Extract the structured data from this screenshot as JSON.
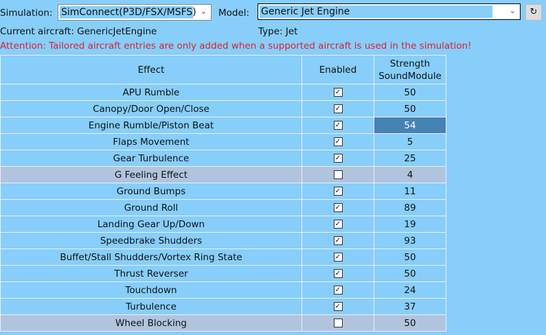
{
  "header": {
    "simulation_label": "Simulation:",
    "simulation_value": "SimConnect(P3D/FSX/MSFS)",
    "model_label": "Model:",
    "model_value": "Generic Jet Engine",
    "refresh_icon": "refresh-icon"
  },
  "info": {
    "current_aircraft": "Current aircraft: GenericJetEngine",
    "type": "Type: Jet",
    "attention": "Attention: Tailored aircraft entries are only added when a supported aircraft is used in the simulation!"
  },
  "colors": {
    "background": "#87cefa",
    "disabled_row": "#b0c4de",
    "selected_cell": "#4682b4",
    "attention": "#e0202a"
  },
  "table": {
    "headers": [
      "Effect",
      "Enabled",
      "Strength\nSoundModule"
    ],
    "rows": [
      {
        "effect": "APU Rumble",
        "enabled": true,
        "strength": "50"
      },
      {
        "effect": "Canopy/Door Open/Close",
        "enabled": true,
        "strength": "50"
      },
      {
        "effect": "Engine Rumble/Piston Beat",
        "enabled": true,
        "strength": "54",
        "selected": true
      },
      {
        "effect": "Flaps Movement",
        "enabled": true,
        "strength": "5"
      },
      {
        "effect": "Gear Turbulence",
        "enabled": true,
        "strength": "25"
      },
      {
        "effect": "G Feeling Effect",
        "enabled": false,
        "strength": "4"
      },
      {
        "effect": "Ground Bumps",
        "enabled": true,
        "strength": "11"
      },
      {
        "effect": "Ground Roll",
        "enabled": true,
        "strength": "89"
      },
      {
        "effect": "Landing Gear Up/Down",
        "enabled": true,
        "strength": "19"
      },
      {
        "effect": "Speedbrake Shudders",
        "enabled": true,
        "strength": "93"
      },
      {
        "effect": "Buffet/Stall Shudders/Vortex Ring State",
        "enabled": true,
        "strength": "50"
      },
      {
        "effect": "Thrust Reverser",
        "enabled": true,
        "strength": "50"
      },
      {
        "effect": "Touchdown",
        "enabled": true,
        "strength": "24"
      },
      {
        "effect": "Turbulence",
        "enabled": true,
        "strength": "37"
      },
      {
        "effect": "Wheel Blocking",
        "enabled": false,
        "strength": "50"
      }
    ]
  }
}
